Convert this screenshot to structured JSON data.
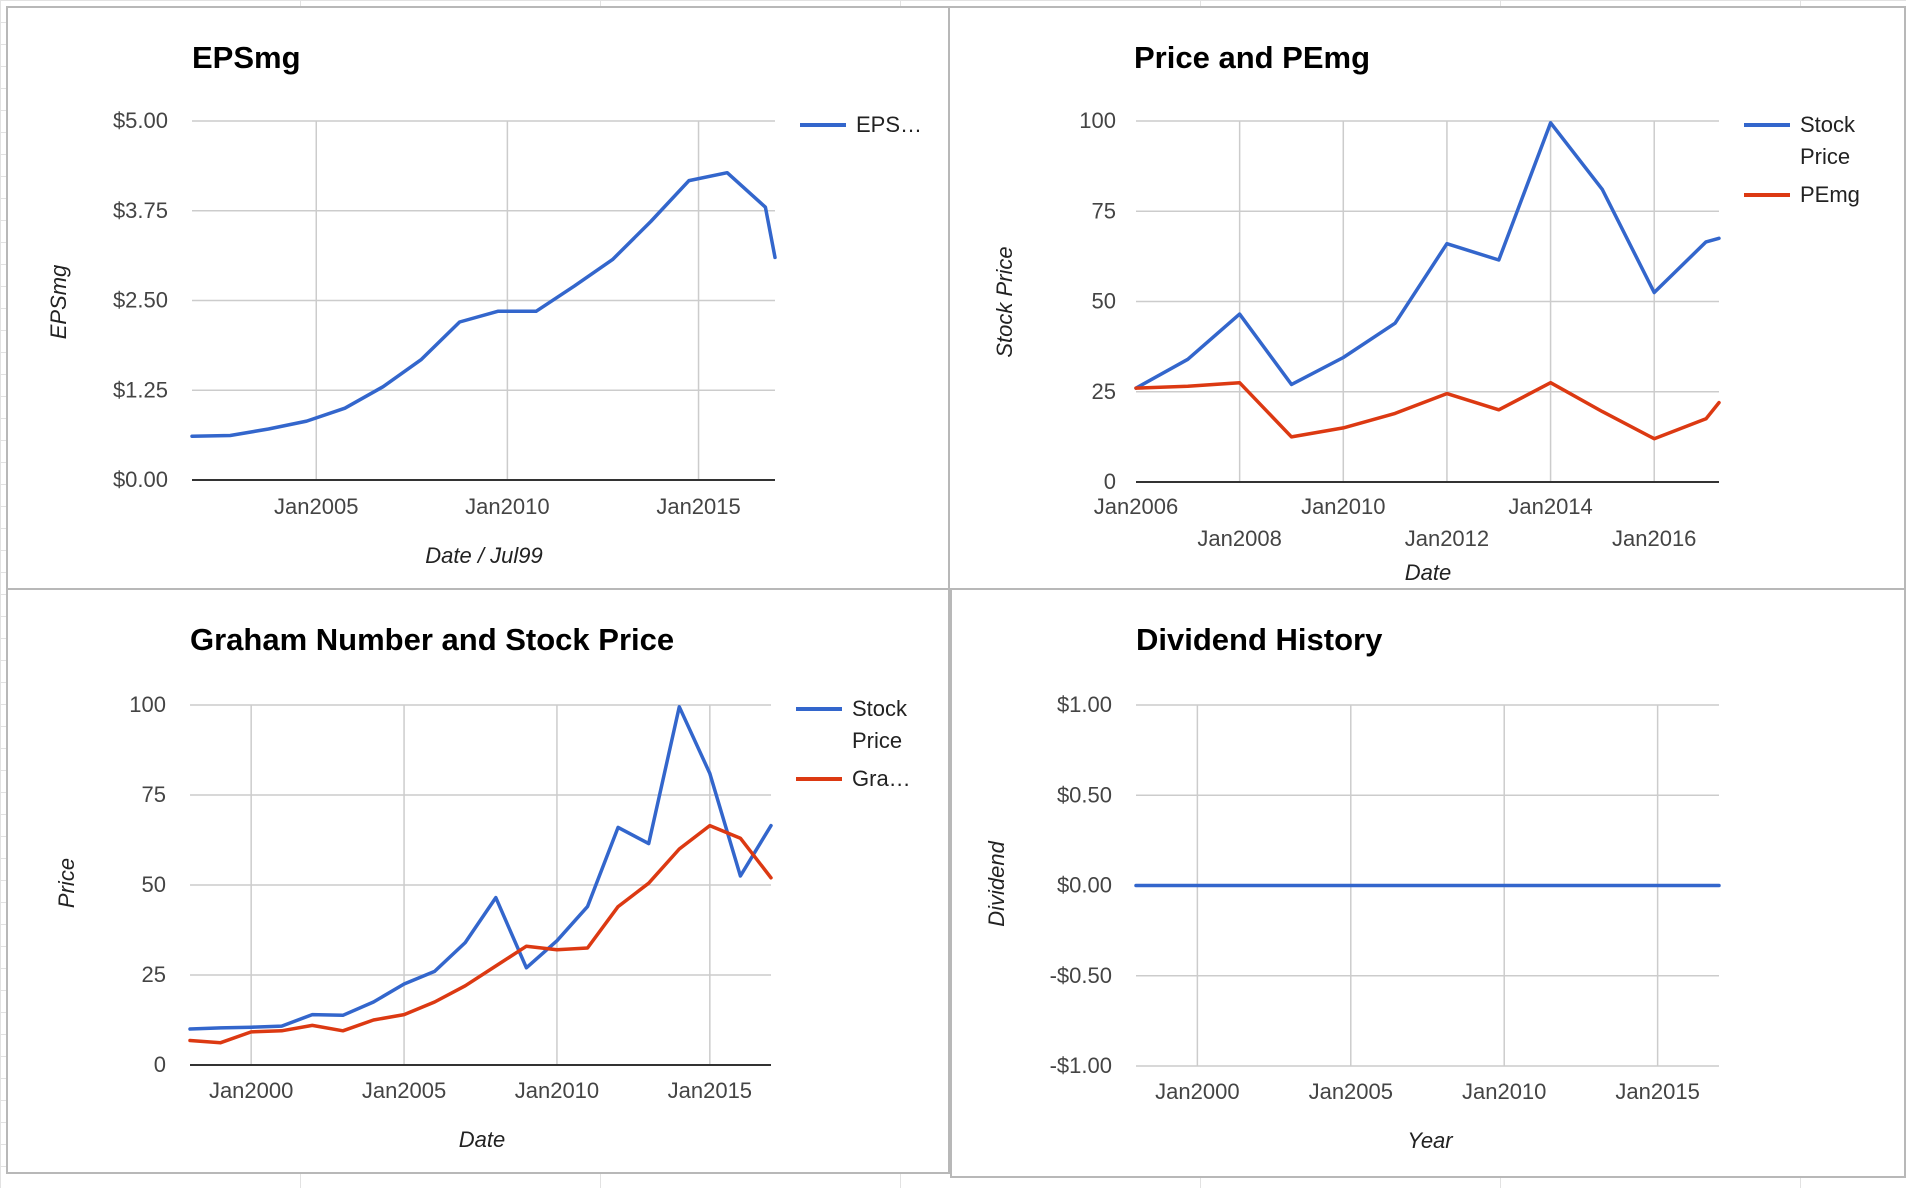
{
  "colors": {
    "blue": "#3366cc",
    "red": "#dc3912"
  },
  "chart_data": [
    {
      "type": "line",
      "title": "EPSmg",
      "xlabel": "Date / Jul99",
      "ylabel": "EPSmg",
      "x_ticks": [
        "Jan2005",
        "Jan2010",
        "Jan2015"
      ],
      "y_ticks": [
        "$5.00",
        "$3.75",
        "$2.50",
        "$1.25",
        "$0.00"
      ],
      "ylim": [
        0,
        5
      ],
      "xlim": [
        "2001-10",
        "2017-01"
      ],
      "grid": true,
      "legend_position": "right",
      "legend_labels": [
        "EPS…"
      ],
      "series": [
        {
          "color": "#3366cc",
          "x": [
            "2001-10",
            "2002-10",
            "2003-10",
            "2004-10",
            "2005-10",
            "2006-10",
            "2007-10",
            "2008-10",
            "2009-10",
            "2010-10",
            "2011-10",
            "2012-10",
            "2013-10",
            "2014-10",
            "2015-10",
            "2016-10",
            "2017-01"
          ],
          "values": [
            0.61,
            0.62,
            0.71,
            0.82,
            1.0,
            1.3,
            1.68,
            2.2,
            2.35,
            2.35,
            2.7,
            3.07,
            3.6,
            4.17,
            4.28,
            3.8,
            3.1
          ]
        }
      ]
    },
    {
      "type": "line",
      "title": "Price and PEmg",
      "xlabel": "Date",
      "ylabel": "Stock Price",
      "x_ticks_upper": [
        "Jan2006",
        "Jan2010",
        "Jan2014"
      ],
      "x_ticks_lower": [
        "Jan2008",
        "Jan2012",
        "Jan2016"
      ],
      "y_ticks": [
        "100",
        "75",
        "50",
        "25",
        "0"
      ],
      "ylim": [
        0,
        100
      ],
      "xlim": [
        "2006-01",
        "2017-04"
      ],
      "grid": true,
      "legend_position": "right",
      "legend_labels": [
        [
          "Stock",
          "Price"
        ],
        [
          "PEmg"
        ]
      ],
      "series": [
        {
          "color": "#3366cc",
          "x": [
            "2006-01",
            "2007-01",
            "2008-01",
            "2009-01",
            "2010-01",
            "2011-01",
            "2012-01",
            "2013-01",
            "2014-01",
            "2015-01",
            "2016-01",
            "2017-01",
            "2017-04"
          ],
          "values": [
            26,
            34,
            46.5,
            27,
            34.5,
            44,
            66,
            61.5,
            99.5,
            81,
            52.5,
            66.5,
            67.5
          ]
        },
        {
          "color": "#dc3912",
          "x": [
            "2006-01",
            "2007-01",
            "2008-01",
            "2009-01",
            "2010-01",
            "2011-01",
            "2012-01",
            "2013-01",
            "2014-01",
            "2015-01",
            "2016-01",
            "2017-01",
            "2017-04"
          ],
          "values": [
            26,
            26.5,
            27.5,
            12.5,
            15,
            19,
            24.5,
            20,
            27.5,
            19.5,
            12,
            17.5,
            22
          ]
        }
      ]
    },
    {
      "type": "line",
      "title": "Graham Number and Stock Price",
      "xlabel": "Date",
      "ylabel": "Price",
      "x_ticks": [
        "Jan2000",
        "Jan2005",
        "Jan2010",
        "Jan2015"
      ],
      "y_ticks": [
        "100",
        "75",
        "50",
        "25",
        "0"
      ],
      "ylim": [
        0,
        100
      ],
      "xlim": [
        "1998-01",
        "2017-01"
      ],
      "grid": true,
      "legend_position": "right",
      "legend_labels": [
        [
          "Stock",
          "Price"
        ],
        [
          "Gra…"
        ]
      ],
      "series": [
        {
          "color": "#3366cc",
          "x": [
            "1998-01",
            "1999-01",
            "2000-01",
            "2001-01",
            "2002-01",
            "2003-01",
            "2004-01",
            "2005-01",
            "2006-01",
            "2007-01",
            "2008-01",
            "2009-01",
            "2010-01",
            "2011-01",
            "2012-01",
            "2013-01",
            "2014-01",
            "2015-01",
            "2016-01",
            "2017-01"
          ],
          "values": [
            10,
            10.3,
            10.5,
            10.8,
            14,
            13.8,
            17.5,
            22.5,
            26,
            34,
            46.5,
            27,
            34.5,
            44,
            66,
            61.5,
            99.5,
            81,
            52.5,
            66.5
          ]
        },
        {
          "color": "#dc3912",
          "x": [
            "1998-01",
            "1999-01",
            "2000-01",
            "2001-01",
            "2002-01",
            "2003-01",
            "2004-01",
            "2005-01",
            "2006-01",
            "2007-01",
            "2008-01",
            "2009-01",
            "2010-01",
            "2011-01",
            "2012-01",
            "2013-01",
            "2014-01",
            "2015-01",
            "2016-01",
            "2017-01"
          ],
          "values": [
            6.8,
            6.2,
            9.2,
            9.5,
            11,
            9.5,
            12.5,
            14,
            17.5,
            22,
            27.5,
            33,
            32,
            32.5,
            44,
            50.5,
            60,
            66.5,
            63,
            52
          ]
        }
      ]
    },
    {
      "type": "line",
      "title": "Dividend History",
      "xlabel": "Year",
      "ylabel": "Dividend",
      "x_ticks": [
        "Jan2000",
        "Jan2005",
        "Jan2010",
        "Jan2015"
      ],
      "y_ticks": [
        "$1.00",
        "$0.50",
        "$0.00",
        "-$0.50",
        "-$1.00"
      ],
      "ylim": [
        -1,
        1
      ],
      "xlim": [
        "1998-01",
        "2017-01"
      ],
      "grid": true,
      "legend_position": "none",
      "series": [
        {
          "color": "#3366cc",
          "x": [
            "1998-01",
            "2017-01"
          ],
          "values": [
            0,
            0
          ]
        }
      ]
    }
  ]
}
